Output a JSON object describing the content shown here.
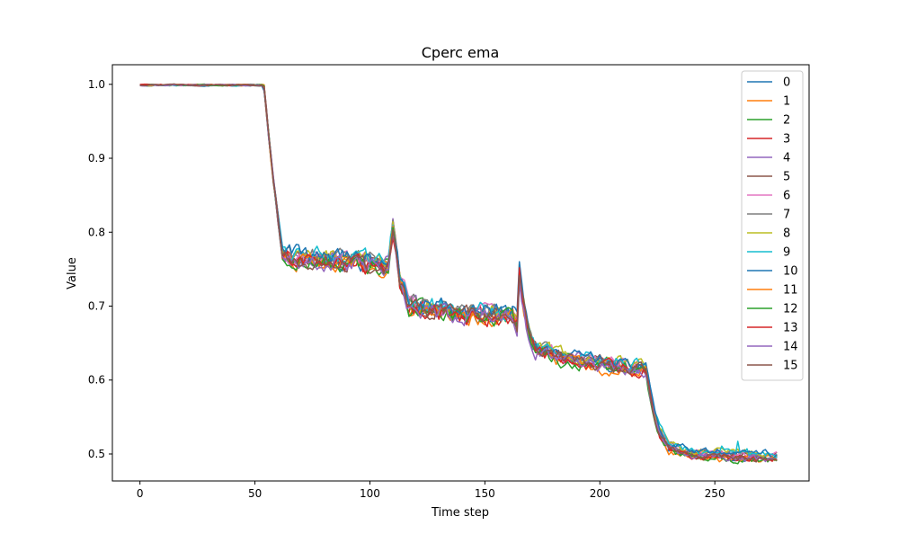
{
  "chart_data": {
    "type": "line",
    "title": "Cperc ema",
    "xlabel": "Time step",
    "ylabel": "Value",
    "xlim": [
      -12,
      291
    ],
    "ylim": [
      0.4635,
      1.0265
    ],
    "xticks": [
      0,
      50,
      100,
      150,
      200,
      250
    ],
    "yticks": [
      0.5,
      0.6,
      0.7,
      0.8,
      0.9,
      1.0
    ],
    "xtick_labels": [
      "0",
      "50",
      "100",
      "150",
      "200",
      "250"
    ],
    "ytick_labels": [
      "0.5",
      "0.6",
      "0.7",
      "0.8",
      "0.9",
      "1.0"
    ],
    "grid": false,
    "legend_position": "top-right",
    "n_points": 278,
    "series": [
      {
        "name": "0",
        "color": "#1f77b4"
      },
      {
        "name": "1",
        "color": "#ff7f0e"
      },
      {
        "name": "2",
        "color": "#2ca02c"
      },
      {
        "name": "3",
        "color": "#d62728"
      },
      {
        "name": "4",
        "color": "#9467bd"
      },
      {
        "name": "5",
        "color": "#8c564b"
      },
      {
        "name": "6",
        "color": "#e377c2"
      },
      {
        "name": "7",
        "color": "#7f7f7f"
      },
      {
        "name": "8",
        "color": "#bcbd22"
      },
      {
        "name": "9",
        "color": "#17becf"
      },
      {
        "name": "10",
        "color": "#1f77b4"
      },
      {
        "name": "11",
        "color": "#ff7f0e"
      },
      {
        "name": "12",
        "color": "#2ca02c"
      },
      {
        "name": "13",
        "color": "#d62728"
      },
      {
        "name": "14",
        "color": "#9467bd"
      },
      {
        "name": "15",
        "color": "#8c564b"
      }
    ],
    "profile_points": [
      [
        0,
        0.999
      ],
      [
        53,
        0.999
      ],
      [
        54,
        0.995
      ],
      [
        56,
        0.93
      ],
      [
        58,
        0.87
      ],
      [
        60,
        0.82
      ],
      [
        62,
        0.77
      ],
      [
        70,
        0.765
      ],
      [
        85,
        0.762
      ],
      [
        100,
        0.758
      ],
      [
        108,
        0.755
      ],
      [
        110,
        0.808
      ],
      [
        111,
        0.79
      ],
      [
        113,
        0.735
      ],
      [
        115,
        0.72
      ],
      [
        117,
        0.7
      ],
      [
        140,
        0.69
      ],
      [
        162,
        0.688
      ],
      [
        164,
        0.675
      ],
      [
        165,
        0.745
      ],
      [
        166,
        0.72
      ],
      [
        168,
        0.68
      ],
      [
        170,
        0.655
      ],
      [
        172,
        0.642
      ],
      [
        185,
        0.63
      ],
      [
        200,
        0.622
      ],
      [
        218,
        0.617
      ],
      [
        220,
        0.615
      ],
      [
        222,
        0.58
      ],
      [
        224,
        0.55
      ],
      [
        226,
        0.53
      ],
      [
        230,
        0.51
      ],
      [
        240,
        0.5
      ],
      [
        277,
        0.495
      ]
    ]
  }
}
